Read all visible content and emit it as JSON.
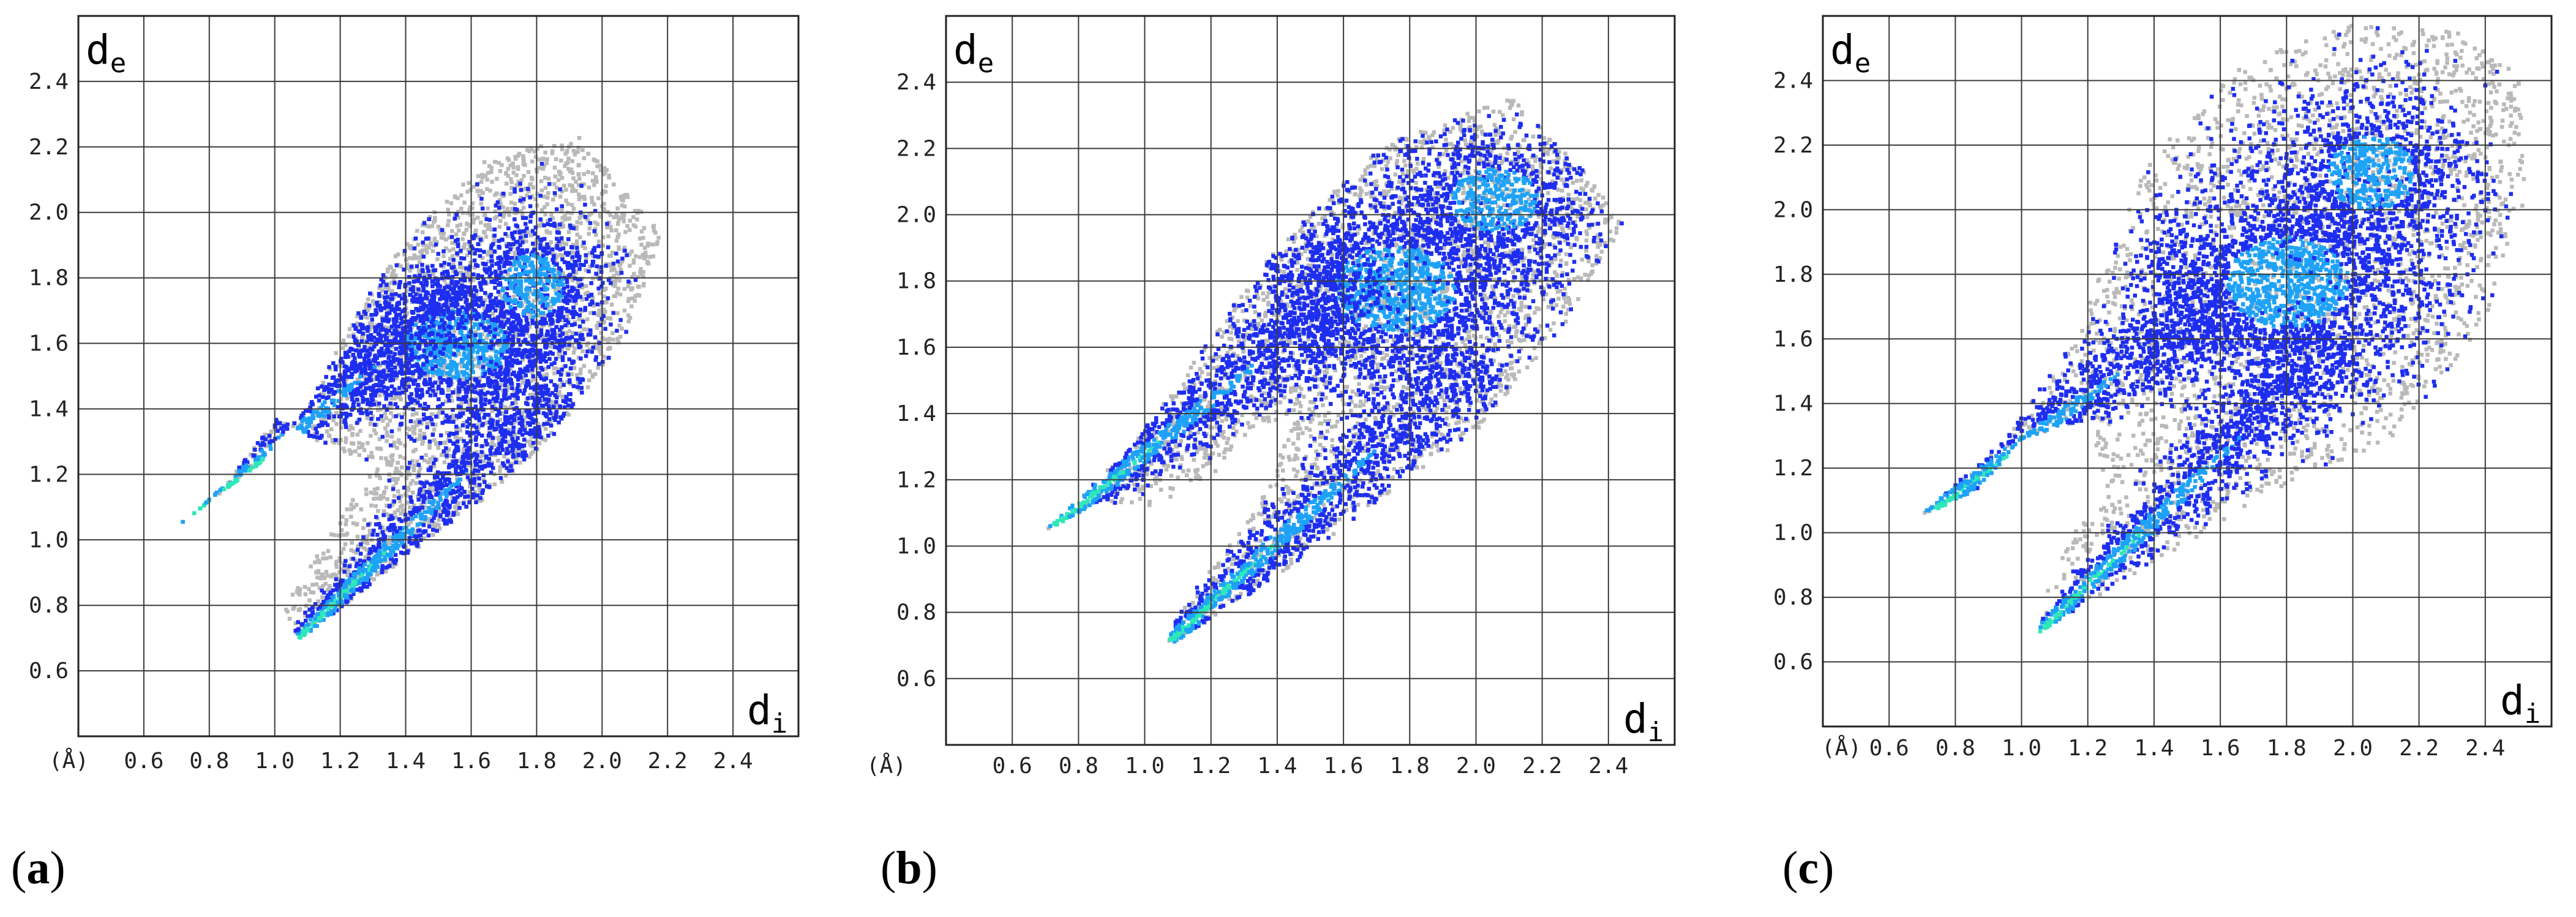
{
  "chart_data": [
    {
      "type": "heatmap",
      "panel": "(a)",
      "x_label_var": "d",
      "x_label_sub": "i",
      "y_label_var": "d",
      "y_label_sub": "e",
      "unit_label": "(Å)",
      "x_ticks": [
        "0.6",
        "0.8",
        "1.0",
        "1.2",
        "1.4",
        "1.6",
        "1.8",
        "2.0",
        "2.2",
        "2.4"
      ],
      "y_ticks": [
        "0.6",
        "0.8",
        "1.0",
        "1.2",
        "1.4",
        "1.6",
        "1.8",
        "2.0",
        "2.2",
        "2.4"
      ],
      "xlim": [
        0.4,
        2.6
      ],
      "ylim": [
        0.4,
        2.6
      ],
      "grid": true,
      "colors": {
        "background_points": "#b9b9b9",
        "low_density": "#1e2ef0",
        "mid_density": "#1ea2f8",
        "high_density": "#2ee8b8"
      },
      "gray_region": [
        [
          0.7,
          1.05
        ],
        [
          0.95,
          1.24
        ],
        [
          1.1,
          1.42
        ],
        [
          1.2,
          1.62
        ],
        [
          1.36,
          1.88
        ],
        [
          1.62,
          2.16
        ],
        [
          1.92,
          2.24
        ],
        [
          2.18,
          1.94
        ],
        [
          2.06,
          1.62
        ],
        [
          1.86,
          1.34
        ],
        [
          1.62,
          1.12
        ],
        [
          1.3,
          0.88
        ],
        [
          1.07,
          0.7
        ],
        [
          1.02,
          0.8
        ],
        [
          1.18,
          1.05
        ],
        [
          1.3,
          1.24
        ],
        [
          1.14,
          1.3
        ],
        [
          1.0,
          1.38
        ],
        [
          0.85,
          1.18
        ]
      ],
      "spikes": [
        {
          "tip": [
            0.71,
            1.05
          ],
          "end": [
            1.6,
            1.78
          ],
          "spread": 0.045,
          "n": 1100
        },
        {
          "tip": [
            1.06,
            0.7
          ],
          "end": [
            1.85,
            1.48
          ],
          "spread": 0.045,
          "n": 1100
        }
      ],
      "blue_clouds": [
        {
          "center": [
            1.55,
            1.6
          ],
          "rx": 0.36,
          "ry": 0.24,
          "n": 1700
        },
        {
          "center": [
            1.78,
            1.78
          ],
          "rx": 0.22,
          "ry": 0.22,
          "n": 700
        }
      ]
    },
    {
      "type": "heatmap",
      "panel": "(b)",
      "x_label_var": "d",
      "x_label_sub": "i",
      "y_label_var": "d",
      "y_label_sub": "e",
      "unit_label": "(Å)",
      "x_ticks": [
        "0.6",
        "0.8",
        "1.0",
        "1.2",
        "1.4",
        "1.6",
        "1.8",
        "2.0",
        "2.2",
        "2.4"
      ],
      "y_ticks": [
        "0.6",
        "0.8",
        "1.0",
        "1.2",
        "1.4",
        "1.6",
        "1.8",
        "2.0",
        "2.2",
        "2.4"
      ],
      "xlim": [
        0.4,
        2.6
      ],
      "ylim": [
        0.4,
        2.6
      ],
      "grid": true,
      "colors": {
        "background_points": "#b9b9b9",
        "low_density": "#1e2ef0",
        "mid_density": "#1ea2f8",
        "high_density": "#2ee8b8"
      },
      "gray_region": [
        [
          0.69,
          1.05
        ],
        [
          0.95,
          1.3
        ],
        [
          1.18,
          1.62
        ],
        [
          1.4,
          1.92
        ],
        [
          1.72,
          2.22
        ],
        [
          2.1,
          2.36
        ],
        [
          2.3,
          2.16
        ],
        [
          2.44,
          1.98
        ],
        [
          2.28,
          1.7
        ],
        [
          2.0,
          1.36
        ],
        [
          1.7,
          1.14
        ],
        [
          1.4,
          0.92
        ],
        [
          1.06,
          0.7
        ],
        [
          1.1,
          0.82
        ],
        [
          1.32,
          1.1
        ],
        [
          1.46,
          1.42
        ],
        [
          1.3,
          1.34
        ],
        [
          1.18,
          1.2
        ],
        [
          1.0,
          1.12
        ],
        [
          0.86,
          1.14
        ]
      ],
      "spikes": [
        {
          "tip": [
            0.7,
            1.05
          ],
          "end": [
            1.7,
            1.85
          ],
          "spread": 0.05,
          "n": 1300
        },
        {
          "tip": [
            1.05,
            0.7
          ],
          "end": [
            2.0,
            1.58
          ],
          "spread": 0.05,
          "n": 1300
        }
      ],
      "blue_clouds": [
        {
          "center": [
            1.75,
            1.78
          ],
          "rx": 0.42,
          "ry": 0.3,
          "n": 2200
        },
        {
          "center": [
            2.05,
            2.05
          ],
          "rx": 0.3,
          "ry": 0.22,
          "n": 900
        }
      ]
    },
    {
      "type": "heatmap",
      "panel": "(c)",
      "x_label_var": "d",
      "x_label_sub": "i",
      "y_label_var": "d",
      "y_label_sub": "e",
      "unit_label": "(Å)",
      "x_ticks": [
        "0.6",
        "0.8",
        "1.0",
        "1.2",
        "1.4",
        "1.6",
        "1.8",
        "2.0",
        "2.2",
        "2.4"
      ],
      "y_ticks": [
        "0.6",
        "0.8",
        "1.0",
        "1.2",
        "1.4",
        "1.6",
        "1.8",
        "2.0",
        "2.2",
        "2.4"
      ],
      "xlim": [
        0.4,
        2.6
      ],
      "ylim": [
        0.4,
        2.6
      ],
      "grid": true,
      "colors": {
        "background_points": "#b9b9b9",
        "low_density": "#1e2ef0",
        "mid_density": "#1ea2f8",
        "high_density": "#2ee8b8"
      },
      "gray_region": [
        [
          0.68,
          1.05
        ],
        [
          0.95,
          1.3
        ],
        [
          1.16,
          1.62
        ],
        [
          1.36,
          2.14
        ],
        [
          1.66,
          2.46
        ],
        [
          2.0,
          2.58
        ],
        [
          2.3,
          2.56
        ],
        [
          2.5,
          2.42
        ],
        [
          2.52,
          2.04
        ],
        [
          2.4,
          1.66
        ],
        [
          2.12,
          1.3
        ],
        [
          1.8,
          1.16
        ],
        [
          1.4,
          0.92
        ],
        [
          1.05,
          0.7
        ],
        [
          1.06,
          0.84
        ],
        [
          1.16,
          1.02
        ],
        [
          1.26,
          1.1
        ],
        [
          1.2,
          1.36
        ],
        [
          1.0,
          1.3
        ],
        [
          0.86,
          1.14
        ]
      ],
      "spikes": [
        {
          "tip": [
            0.7,
            1.05
          ],
          "end": [
            1.6,
            1.74
          ],
          "spread": 0.05,
          "n": 1200
        },
        {
          "tip": [
            1.05,
            0.7
          ],
          "end": [
            1.95,
            1.6
          ],
          "spread": 0.05,
          "n": 1200
        }
      ],
      "blue_clouds": [
        {
          "center": [
            1.8,
            1.78
          ],
          "rx": 0.42,
          "ry": 0.32,
          "n": 2300
        },
        {
          "center": [
            2.05,
            2.12
          ],
          "rx": 0.3,
          "ry": 0.26,
          "n": 1000
        }
      ]
    }
  ]
}
